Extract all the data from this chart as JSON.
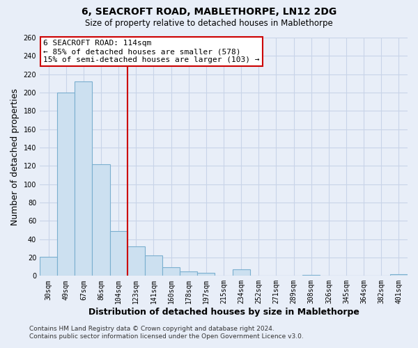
{
  "title": "6, SEACROFT ROAD, MABLETHORPE, LN12 2DG",
  "subtitle": "Size of property relative to detached houses in Mablethorpe",
  "xlabel": "Distribution of detached houses by size in Mablethorpe",
  "ylabel": "Number of detached properties",
  "bar_labels": [
    "30sqm",
    "49sqm",
    "67sqm",
    "86sqm",
    "104sqm",
    "123sqm",
    "141sqm",
    "160sqm",
    "178sqm",
    "197sqm",
    "215sqm",
    "234sqm",
    "252sqm",
    "271sqm",
    "289sqm",
    "308sqm",
    "326sqm",
    "345sqm",
    "364sqm",
    "382sqm",
    "401sqm"
  ],
  "bar_values": [
    21,
    200,
    212,
    122,
    49,
    32,
    22,
    9,
    5,
    3,
    0,
    7,
    0,
    0,
    0,
    1,
    0,
    0,
    0,
    0,
    2
  ],
  "bar_color": "#cce0f0",
  "bar_edge_color": "#7aafcf",
  "reference_line_color": "#cc0000",
  "annotation_title": "6 SEACROFT ROAD: 114sqm",
  "annotation_line1": "← 85% of detached houses are smaller (578)",
  "annotation_line2": "15% of semi-detached houses are larger (103) →",
  "annotation_box_color": "white",
  "annotation_box_edge": "#cc0000",
  "footer_line1": "Contains HM Land Registry data © Crown copyright and database right 2024.",
  "footer_line2": "Contains public sector information licensed under the Open Government Licence v3.0.",
  "ylim": [
    0,
    260
  ],
  "yticks": [
    0,
    20,
    40,
    60,
    80,
    100,
    120,
    140,
    160,
    180,
    200,
    220,
    240,
    260
  ],
  "background_color": "#e8eef8",
  "grid_color": "#c8d4e8",
  "title_fontsize": 10,
  "subtitle_fontsize": 8.5,
  "tick_fontsize": 7,
  "axis_label_fontsize": 9,
  "footer_fontsize": 6.5,
  "ann_fontsize": 8
}
